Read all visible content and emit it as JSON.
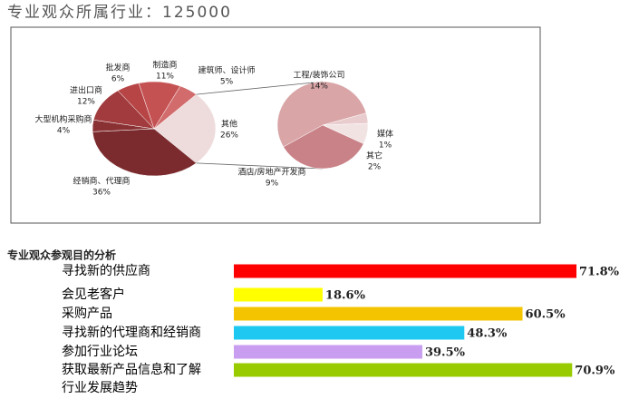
{
  "chart_data": [
    {
      "type": "pie-of-pie",
      "title": "专业观众所属行业：125000",
      "categories": [
        "其他",
        "经销商、代理商",
        "大型机构采购商",
        "进出口商",
        "批发商",
        "制造商",
        "建筑师、设计师"
      ],
      "values": [
        26,
        36,
        4,
        12,
        6,
        11,
        5
      ],
      "value_labels": [
        "26%",
        "36%",
        "4%",
        "12%",
        "6%",
        "11%",
        "5%"
      ],
      "colors": [
        "#eedcdc",
        "#7b2b2e",
        "#8a3134",
        "#a13b3d",
        "#b84546",
        "#c55253",
        "#d26c6c"
      ],
      "breakout": {
        "categories": [
          "工程/装饰公司",
          "媒体",
          "其它",
          "酒店/房地产开发商"
        ],
        "values": [
          14,
          1,
          2,
          9
        ],
        "value_labels": [
          "14%",
          "1%",
          "2%",
          "9%"
        ],
        "colors": [
          "#d9a5a7",
          "#e9cccd",
          "#f2e3e3",
          "#c98287"
        ]
      }
    },
    {
      "type": "bar",
      "title": "专业观众参观目的分析",
      "categories": [
        "寻找新的供应商",
        "会见老客户",
        "采购产品",
        "寻找新的代理商和经销商",
        "参加行业论坛",
        "获取最新产品信息和了解行业发展趋势"
      ],
      "values": [
        71.8,
        18.6,
        60.5,
        48.3,
        39.5,
        70.9
      ],
      "value_labels": [
        "71.8%",
        "18.6%",
        "60.5%",
        "48.3%",
        "39.5%",
        "70.9%"
      ],
      "colors": [
        "#ff0000",
        "#ffff00",
        "#f5c400",
        "#1ec8f0",
        "#c99ef0",
        "#99cc00"
      ]
    }
  ]
}
